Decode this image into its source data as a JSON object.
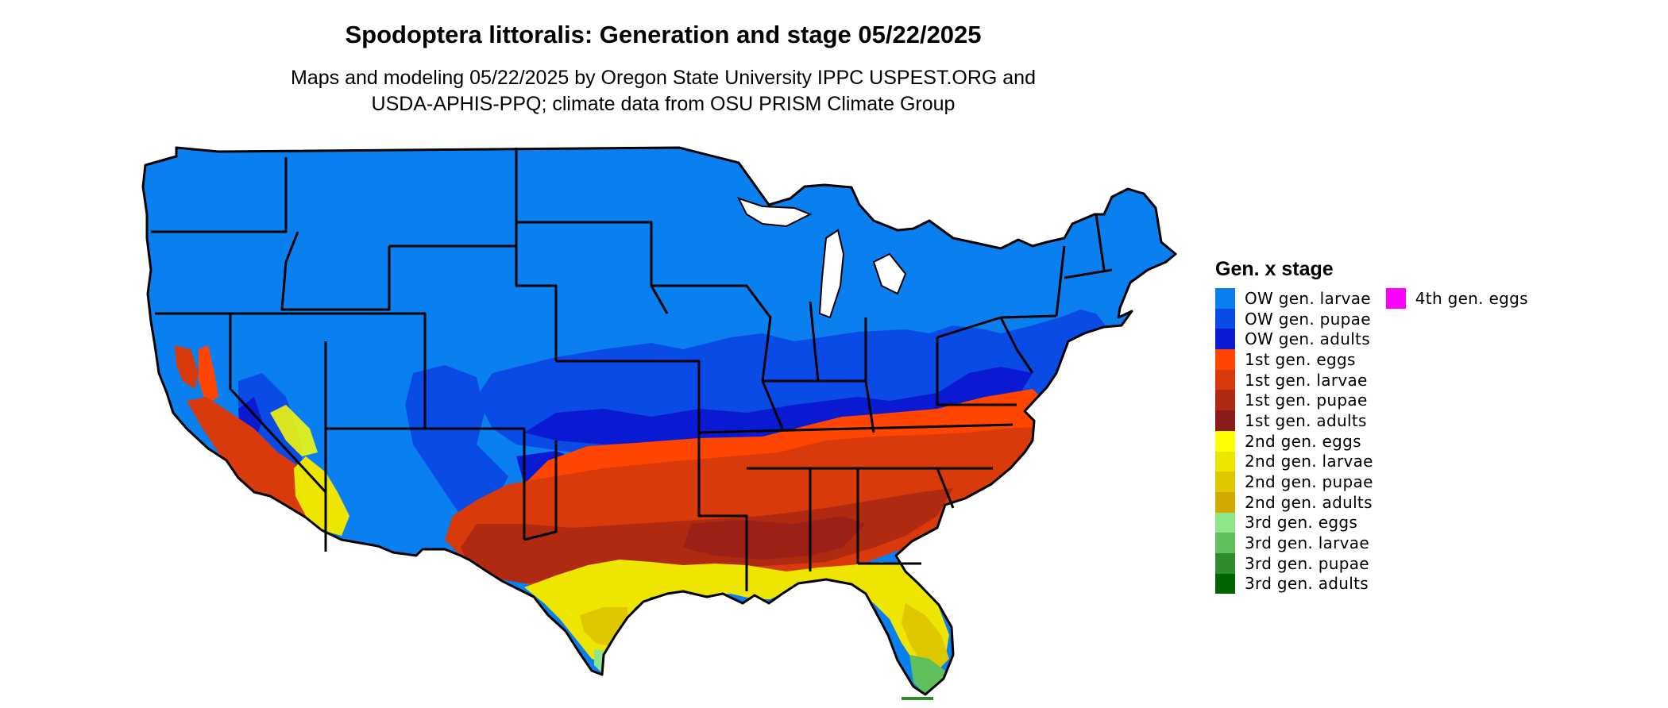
{
  "title": "Spodoptera littoralis: Generation and stage 05/22/2025",
  "subtitle_line1": "Maps and modeling 05/22/2025 by Oregon State University IPPC USPEST.ORG and",
  "subtitle_line2": "USDA-APHIS-PPQ; climate data from OSU PRISM Climate Group",
  "legend": {
    "title": "Gen. x stage",
    "columns": [
      [
        {
          "label": "OW gen. larvae",
          "color": "#0a7ff0"
        },
        {
          "label": "OW gen. pupae",
          "color": "#0a4be6"
        },
        {
          "label": "OW gen. adults",
          "color": "#0a1ad2"
        },
        {
          "label": "1st gen. eggs",
          "color": "#ff4500"
        },
        {
          "label": "1st gen. larvae",
          "color": "#d93a0b"
        },
        {
          "label": "1st gen. pupae",
          "color": "#b02a12"
        },
        {
          "label": "1st gen. adults",
          "color": "#8b1a1a"
        },
        {
          "label": "2nd gen. eggs",
          "color": "#ffff00"
        },
        {
          "label": "2nd gen. larvae",
          "color": "#eee600"
        },
        {
          "label": "2nd gen. pupae",
          "color": "#e0c800"
        },
        {
          "label": "2nd gen. adults",
          "color": "#d1aa00"
        },
        {
          "label": "3rd gen. eggs",
          "color": "#8fe68a"
        },
        {
          "label": "3rd gen. larvae",
          "color": "#5fbf5c"
        },
        {
          "label": "3rd gen. pupae",
          "color": "#2e8b2e"
        },
        {
          "label": "3rd gen. adults",
          "color": "#006400"
        }
      ],
      [
        {
          "label": "4th gen. eggs",
          "color": "#ff00ff"
        }
      ]
    ]
  },
  "map": {
    "region": "contiguous United States",
    "layers": [
      {
        "stage": "OW gen. larvae",
        "color": "#0a7ff0"
      },
      {
        "stage": "OW gen. pupae",
        "color": "#0a4be6"
      },
      {
        "stage": "OW gen. adults",
        "color": "#0a1ad2"
      },
      {
        "stage": "1st gen. eggs",
        "color": "#ff4500"
      },
      {
        "stage": "1st gen. larvae",
        "color": "#d93a0b"
      },
      {
        "stage": "1st gen. pupae",
        "color": "#b02a12"
      },
      {
        "stage": "2nd gen. larvae",
        "color": "#eee600"
      },
      {
        "stage": "2nd gen. pupae",
        "color": "#e0c800"
      },
      {
        "stage": "3rd gen. eggs",
        "color": "#8fe68a"
      },
      {
        "stage": "3rd gen. larvae",
        "color": "#5fbf5c"
      },
      {
        "stage": "3rd gen. pupae",
        "color": "#2e8b2e"
      }
    ]
  }
}
